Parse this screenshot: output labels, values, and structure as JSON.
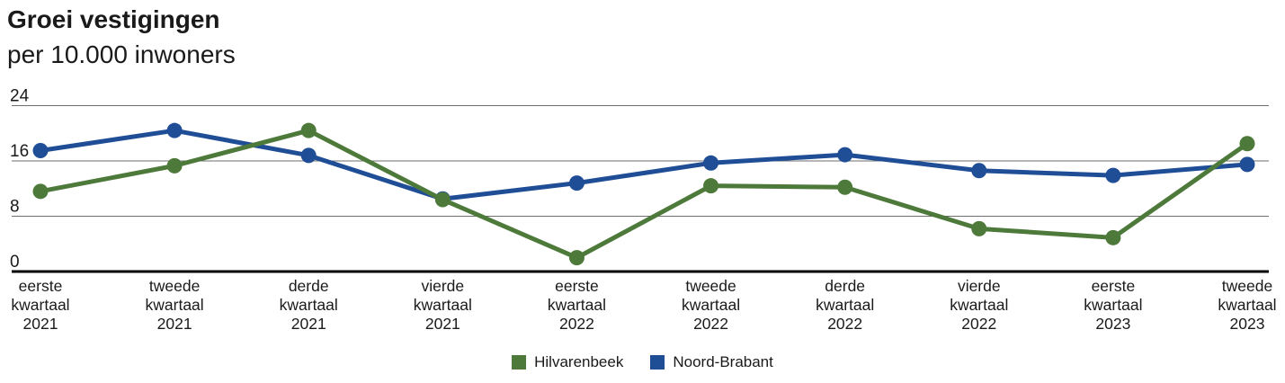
{
  "header": {
    "title": "Groei vestigingen",
    "subtitle": "per 10.000 inwoners"
  },
  "chart_data": {
    "type": "line",
    "title": "Groei vestigingen",
    "subtitle": "per 10.000 inwoners",
    "categories": [
      [
        "eerste",
        "kwartaal",
        "2021"
      ],
      [
        "tweede",
        "kwartaal",
        "2021"
      ],
      [
        "derde",
        "kwartaal",
        "2021"
      ],
      [
        "vierde",
        "kwartaal",
        "2021"
      ],
      [
        "eerste",
        "kwartaal",
        "2022"
      ],
      [
        "tweede",
        "kwartaal",
        "2022"
      ],
      [
        "derde",
        "kwartaal",
        "2022"
      ],
      [
        "vierde",
        "kwartaal",
        "2022"
      ],
      [
        "eerste",
        "kwartaal",
        "2023"
      ],
      [
        "tweede",
        "kwartaal",
        "2023"
      ]
    ],
    "series": [
      {
        "name": "Hilvarenbeek",
        "color": "#4d7a3a",
        "values": [
          11.6,
          15.3,
          20.4,
          10.4,
          2.0,
          12.4,
          12.2,
          6.2,
          4.9,
          18.5
        ]
      },
      {
        "name": "Noord-Brabant",
        "color": "#1f4e96",
        "values": [
          17.5,
          20.4,
          16.8,
          10.5,
          12.8,
          15.7,
          16.9,
          14.6,
          13.9,
          15.5
        ]
      }
    ],
    "yticks": [
      0,
      8,
      16,
      24
    ],
    "ylim": [
      0,
      24
    ],
    "grid": true,
    "legend_position": "bottom",
    "colors": {
      "axis": "#000000",
      "gridline": "#6e6e6e",
      "text": "#1a1a1a"
    }
  },
  "legend": {
    "items": [
      {
        "label": "Hilvarenbeek",
        "color": "#4d7a3a"
      },
      {
        "label": "Noord-Brabant",
        "color": "#1f4e96"
      }
    ]
  }
}
